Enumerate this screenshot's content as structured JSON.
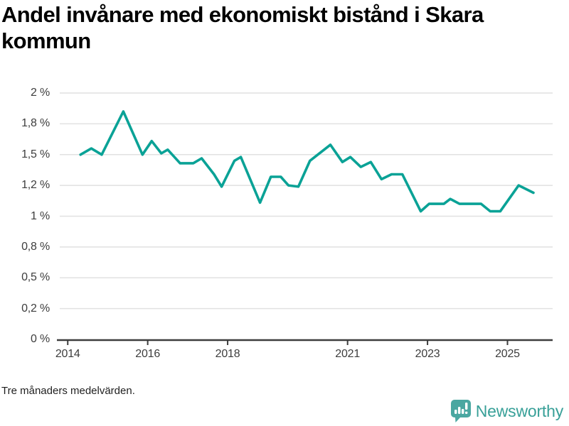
{
  "header": {
    "title": "Andel invånare med ekonomiskt bistånd i Skara kommun"
  },
  "footer": {
    "note": "Tre månaders medelvärden.",
    "brand": "Newsworthy"
  },
  "colors": {
    "line": "#0aa296",
    "grid": "#e1e1e1",
    "axis": "#3d3d3d",
    "tick_text": "#3d3d3d",
    "brand_icon": "#4aa7a1",
    "brand_text": "#38a098",
    "title_text": "#000000"
  },
  "chart_data": {
    "type": "line",
    "title": "Andel invånare med ekonomiskt bistånd i Skara kommun",
    "note": "Tre månaders medelvärden.",
    "unit": "%",
    "grid": "horizontal",
    "legend": "none",
    "xlabel": "",
    "ylabel": "",
    "x_axis": {
      "min": 2013.8,
      "max": 2026.13,
      "ticks": [
        {
          "year": 2014,
          "label": "2014"
        },
        {
          "year": 2016,
          "label": "2016"
        },
        {
          "year": 2018,
          "label": "2018"
        },
        {
          "year": 2021,
          "label": "2021"
        },
        {
          "year": 2023,
          "label": "2023"
        },
        {
          "year": 2025,
          "label": "2025"
        }
      ]
    },
    "y_axis": {
      "min": 0,
      "max": 2,
      "ticks": [
        {
          "value": 2,
          "label": "2 %"
        },
        {
          "value": 1.75,
          "label": "1,8 %"
        },
        {
          "value": 1.5,
          "label": "1,5 %"
        },
        {
          "value": 1.25,
          "label": "1,2 %"
        },
        {
          "value": 1,
          "label": "1 %"
        },
        {
          "value": 0.75,
          "label": "0,8 %"
        },
        {
          "value": 0.5,
          "label": "0,5 %"
        },
        {
          "value": 0.25,
          "label": "0,2 %"
        },
        {
          "value": 0,
          "label": "0 %"
        }
      ]
    },
    "series": [
      {
        "name": "Skara kommun",
        "points": [
          [
            2014.32,
            1.5
          ],
          [
            2014.59,
            1.55
          ],
          [
            2014.85,
            1.5
          ],
          [
            2015.39,
            1.85
          ],
          [
            2015.87,
            1.5
          ],
          [
            2016.1,
            1.61
          ],
          [
            2016.34,
            1.51
          ],
          [
            2016.5,
            1.54
          ],
          [
            2016.81,
            1.43
          ],
          [
            2017.14,
            1.43
          ],
          [
            2017.35,
            1.47
          ],
          [
            2017.66,
            1.34
          ],
          [
            2017.85,
            1.24
          ],
          [
            2018.17,
            1.45
          ],
          [
            2018.33,
            1.48
          ],
          [
            2018.81,
            1.11
          ],
          [
            2019.08,
            1.32
          ],
          [
            2019.33,
            1.32
          ],
          [
            2019.52,
            1.25
          ],
          [
            2019.77,
            1.24
          ],
          [
            2020.06,
            1.45
          ],
          [
            2020.57,
            1.58
          ],
          [
            2020.87,
            1.44
          ],
          [
            2021.07,
            1.48
          ],
          [
            2021.33,
            1.4
          ],
          [
            2021.58,
            1.44
          ],
          [
            2021.85,
            1.3
          ],
          [
            2022.1,
            1.34
          ],
          [
            2022.37,
            1.34
          ],
          [
            2022.83,
            1.04
          ],
          [
            2023.04,
            1.1
          ],
          [
            2023.41,
            1.1
          ],
          [
            2023.57,
            1.14
          ],
          [
            2023.8,
            1.1
          ],
          [
            2024.34,
            1.1
          ],
          [
            2024.57,
            1.04
          ],
          [
            2024.82,
            1.04
          ],
          [
            2025.28,
            1.25
          ],
          [
            2025.65,
            1.19
          ]
        ]
      }
    ]
  }
}
